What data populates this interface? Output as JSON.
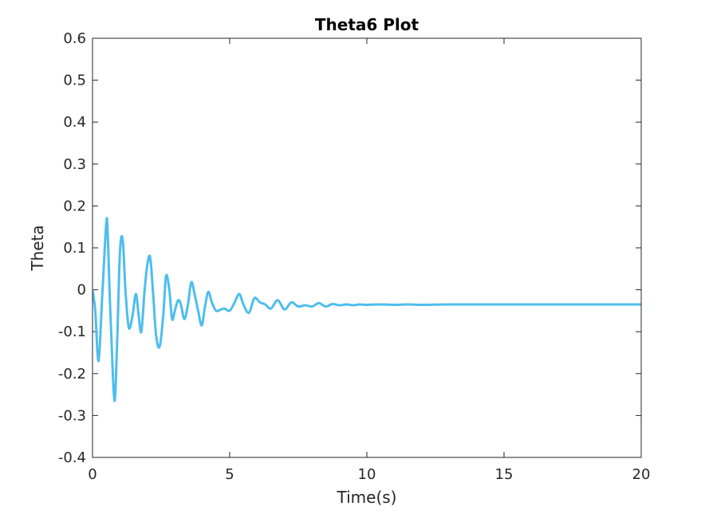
{
  "chart_data": {
    "type": "line",
    "title": "Theta6 Plot",
    "xlabel": "Time(s)",
    "ylabel": "Theta",
    "xlim": [
      0,
      20
    ],
    "ylim": [
      -0.4,
      0.6
    ],
    "x_ticks": [
      0,
      5,
      10,
      15,
      20
    ],
    "x_tick_labels": [
      "0",
      "5",
      "10",
      "15",
      "20"
    ],
    "y_ticks": [
      -0.4,
      -0.3,
      -0.2,
      -0.1,
      0,
      0.1,
      0.2,
      0.3,
      0.4,
      0.5,
      0.6
    ],
    "y_tick_labels": [
      "-0.4",
      "-0.3",
      "-0.2",
      "-0.1",
      "0",
      "0.1",
      "0.2",
      "0.3",
      "0.4",
      "0.5",
      "0.6"
    ],
    "grid": false,
    "line_color": "#4DBEEE",
    "series": [
      {
        "x": [
          0,
          0.1,
          0.22,
          0.35,
          0.5,
          0.55,
          0.62,
          0.68,
          0.8,
          0.9,
          1.0,
          1.1,
          1.2,
          1.32,
          1.45,
          1.58,
          1.68,
          1.78,
          1.9,
          2.0,
          2.1,
          2.2,
          2.32,
          2.45,
          2.58,
          2.68,
          2.8,
          2.9,
          3.0,
          3.12,
          3.22,
          3.35,
          3.48,
          3.6,
          3.72,
          3.85,
          3.98,
          4.1,
          4.22,
          4.35,
          4.5,
          4.65,
          4.8,
          5.0,
          5.18,
          5.35,
          5.5,
          5.7,
          5.9,
          6.1,
          6.3,
          6.5,
          6.75,
          7.0,
          7.25,
          7.5,
          7.75,
          8.0,
          8.25,
          8.5,
          8.75,
          9.0,
          9.25,
          9.5,
          9.75,
          10.0,
          10.5,
          11.0,
          11.5,
          12.0,
          13.0,
          14.0,
          15.0,
          16.0,
          17.0,
          18.0,
          19.0,
          20.0
        ],
        "y": [
          0.0,
          -0.05,
          -0.17,
          -0.02,
          0.158,
          0.14,
          0.0,
          -0.1,
          -0.265,
          -0.12,
          0.09,
          0.12,
          0.0,
          -0.09,
          -0.065,
          -0.01,
          -0.06,
          -0.1,
          0.0,
          0.06,
          0.078,
          0.0,
          -0.11,
          -0.135,
          -0.06,
          0.033,
          0.0,
          -0.07,
          -0.05,
          -0.025,
          -0.035,
          -0.07,
          -0.035,
          0.018,
          -0.01,
          -0.05,
          -0.085,
          -0.04,
          -0.005,
          -0.03,
          -0.05,
          -0.048,
          -0.045,
          -0.05,
          -0.03,
          -0.01,
          -0.035,
          -0.055,
          -0.02,
          -0.03,
          -0.035,
          -0.045,
          -0.025,
          -0.047,
          -0.03,
          -0.04,
          -0.037,
          -0.04,
          -0.032,
          -0.04,
          -0.034,
          -0.037,
          -0.035,
          -0.037,
          -0.035,
          -0.036,
          -0.035,
          -0.036,
          -0.035,
          -0.036,
          -0.035,
          -0.035,
          -0.035,
          -0.035,
          -0.035,
          -0.035,
          -0.035,
          -0.035
        ]
      }
    ]
  }
}
